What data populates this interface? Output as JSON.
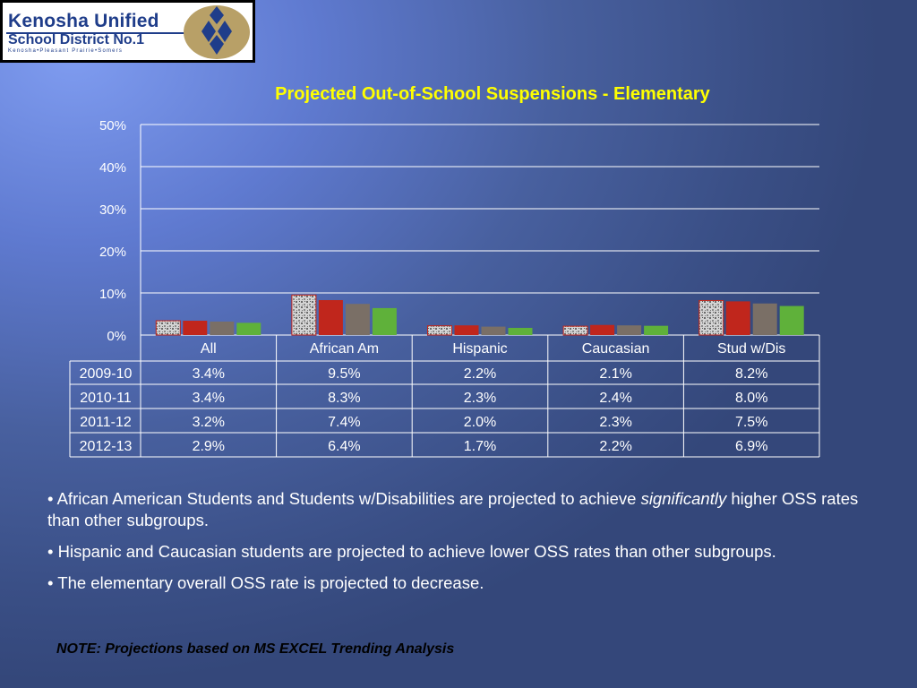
{
  "logo": {
    "line1": "Kenosha Unified",
    "line2": "School District No.1",
    "line3": "Kenosha•Pleasant Prairie•Somers"
  },
  "chart_data": {
    "type": "bar",
    "title": "Projected Out-of-School Suspensions - Elementary",
    "categories": [
      "All",
      "African Am",
      "Hispanic",
      "Caucasian",
      "Stud w/Dis"
    ],
    "y_ticks": [
      "0%",
      "10%",
      "20%",
      "30%",
      "40%",
      "50%"
    ],
    "ylim": [
      0,
      50
    ],
    "series": [
      {
        "name": "2009-10",
        "values": [
          3.4,
          9.5,
          2.2,
          2.1,
          8.2
        ],
        "labels": [
          "3.4%",
          "9.5%",
          "2.2%",
          "2.1%",
          "8.2%"
        ],
        "color": "#c8c8c8"
      },
      {
        "name": "2010-11",
        "values": [
          3.4,
          8.3,
          2.3,
          2.4,
          8.0
        ],
        "labels": [
          "3.4%",
          "8.3%",
          "2.3%",
          "2.4%",
          "8.0%"
        ],
        "color": "#c0261c"
      },
      {
        "name": "2011-12",
        "values": [
          3.2,
          7.4,
          2.0,
          2.3,
          7.5
        ],
        "labels": [
          "3.2%",
          "7.4%",
          "2.0%",
          "2.3%",
          "7.5%"
        ],
        "color": "#7a6f66"
      },
      {
        "name": "2012-13",
        "values": [
          2.9,
          6.4,
          1.7,
          2.2,
          6.9
        ],
        "labels": [
          "2.9%",
          "6.4%",
          "1.7%",
          "2.2%",
          "6.9%"
        ],
        "color": "#5fb13a"
      }
    ],
    "grid": true,
    "legend": "data table below chart"
  },
  "bullets": {
    "b1_pre": "• African American Students and Students w/Disabilities are projected to achieve ",
    "b1_em": "significantly",
    "b1_post": " higher OSS rates than other subgroups.",
    "b2": "• Hispanic and Caucasian students are projected to achieve lower OSS rates than other subgroups.",
    "b3": "• The elementary overall OSS rate is projected to decrease."
  },
  "note": "NOTE: Projections based on MS EXCEL Trending Analysis"
}
